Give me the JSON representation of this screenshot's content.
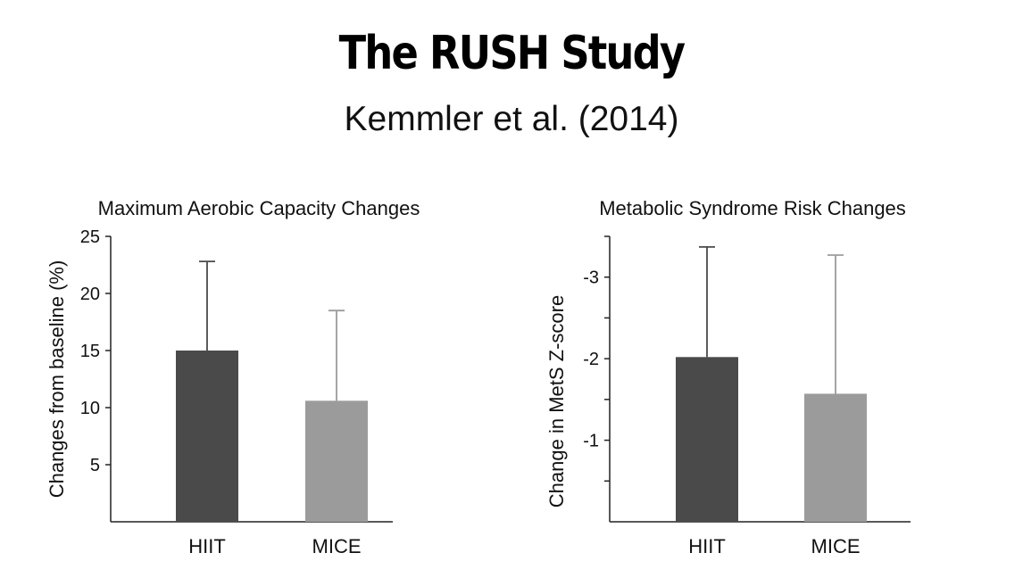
{
  "page": {
    "title": "The RUSH Study",
    "subtitle": "Kemmler et al. (2014)"
  },
  "colors": {
    "hiit": "#4a4a4a",
    "mice": "#9b9b9b",
    "axis": "#222222"
  },
  "chart_data": [
    {
      "type": "bar",
      "title": "Maximum Aerobic Capacity Changes",
      "xlabel": "",
      "ylabel": "Changes from baseline (%)",
      "categories": [
        "HIIT",
        "MICE"
      ],
      "values": [
        15.0,
        10.6
      ],
      "error_upper": [
        22.8,
        18.5
      ],
      "ylim": [
        0,
        25
      ],
      "yticks": [
        25,
        20,
        15,
        10,
        5
      ],
      "ytick_labels": [
        "25",
        "20",
        "15",
        "10",
        "5"
      ]
    },
    {
      "type": "bar",
      "title": "Metabolic Syndrome Risk Changes",
      "xlabel": "",
      "ylabel": "Change in MetS Z-score",
      "categories": [
        "HIIT",
        "MICE"
      ],
      "values": [
        -2.02,
        -1.57
      ],
      "error_upper": [
        -3.37,
        -3.27
      ],
      "ylim": [
        0,
        -3.5
      ],
      "yticks": [
        -3.5,
        -3,
        -2.5,
        -2,
        -1.5,
        -1,
        -0.5
      ],
      "ytick_labels": [
        "",
        "-3",
        "",
        "-2",
        "",
        "-1",
        ""
      ]
    }
  ]
}
